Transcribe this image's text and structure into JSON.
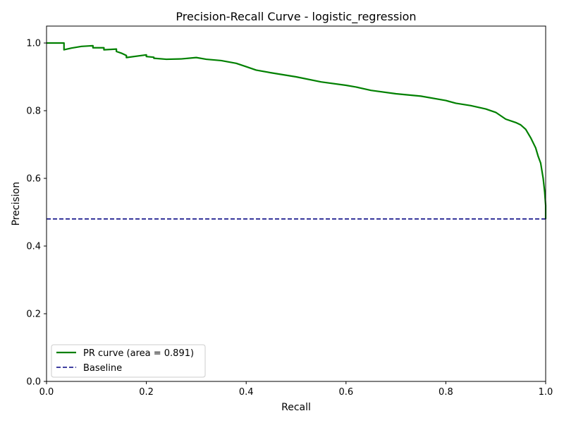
{
  "chart_data": {
    "type": "line",
    "title": "Precision-Recall Curve - logistic_regression",
    "xlabel": "Recall",
    "ylabel": "Precision",
    "xlim": [
      0.0,
      1.0
    ],
    "ylim": [
      0.0,
      1.05
    ],
    "xticks": [
      "0.0",
      "0.2",
      "0.4",
      "0.6",
      "0.8",
      "1.0"
    ],
    "yticks": [
      "0.0",
      "0.2",
      "0.4",
      "0.6",
      "0.8",
      "1.0"
    ],
    "grid": false,
    "legend_position": "lower-left",
    "series": [
      {
        "name": "PR curve (area = 0.891)",
        "color": "#008000",
        "style": "solid",
        "x": [
          0.0,
          0.035,
          0.035,
          0.05,
          0.07,
          0.093,
          0.093,
          0.115,
          0.115,
          0.14,
          0.14,
          0.15,
          0.16,
          0.16,
          0.2,
          0.2,
          0.215,
          0.215,
          0.24,
          0.27,
          0.3,
          0.32,
          0.35,
          0.38,
          0.4,
          0.42,
          0.45,
          0.5,
          0.55,
          0.6,
          0.62,
          0.65,
          0.7,
          0.75,
          0.8,
          0.82,
          0.85,
          0.88,
          0.9,
          0.92,
          0.94,
          0.95,
          0.96,
          0.97,
          0.98,
          0.985,
          0.99,
          0.995,
          0.998,
          1.0,
          1.0
        ],
        "y": [
          1.0,
          1.0,
          0.98,
          0.985,
          0.99,
          0.992,
          0.986,
          0.986,
          0.98,
          0.982,
          0.975,
          0.97,
          0.963,
          0.957,
          0.965,
          0.96,
          0.958,
          0.955,
          0.952,
          0.953,
          0.957,
          0.952,
          0.948,
          0.94,
          0.93,
          0.92,
          0.912,
          0.9,
          0.885,
          0.875,
          0.87,
          0.86,
          0.85,
          0.843,
          0.83,
          0.822,
          0.815,
          0.805,
          0.795,
          0.775,
          0.765,
          0.758,
          0.745,
          0.72,
          0.69,
          0.665,
          0.645,
          0.6,
          0.56,
          0.52,
          0.48
        ]
      },
      {
        "name": "Baseline",
        "color": "#000080",
        "style": "dashed",
        "x": [
          0.0,
          1.0
        ],
        "y": [
          0.48,
          0.48
        ]
      }
    ]
  }
}
